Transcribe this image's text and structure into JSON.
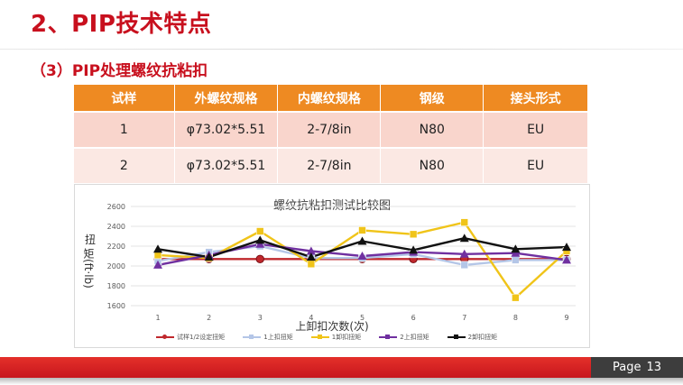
{
  "slide": {
    "title": "2、PIP技术特点",
    "subtitle": "（3）PIP处理螺纹抗粘扣",
    "page_label": "Page",
    "page_number": "13"
  },
  "table": {
    "headers": [
      "试样",
      "外螺纹规格",
      "内螺纹规格",
      "钢级",
      "接头形式"
    ],
    "rows": [
      [
        "1",
        "φ73.02*5.51",
        "2-7/8in",
        "N80",
        "EU"
      ],
      [
        "2",
        "φ73.02*5.51",
        "2-7/8in",
        "N80",
        "EU"
      ]
    ]
  },
  "chart_data": {
    "type": "line",
    "title": "螺纹抗粘扣测试比较图",
    "xlabel": "上卸扣次数(次)",
    "ylabel_main": "扭",
    "ylabel_rest": "矩(ft·lb)",
    "x": [
      1,
      2,
      3,
      4,
      5,
      6,
      7,
      8,
      9
    ],
    "ylim": [
      1600,
      2600
    ],
    "yticks": [
      1600,
      1800,
      2000,
      2200,
      2400,
      2600
    ],
    "grid": "horizontal",
    "legend_position": "bottom",
    "series": [
      {
        "name": "试样1/2设定扭矩",
        "color": "#c0282d",
        "marker": "circle",
        "values": [
          2070,
          2070,
          2070,
          2070,
          2070,
          2070,
          2070,
          2070,
          2070
        ]
      },
      {
        "name": "1上扣扭矩",
        "color": "#b4c6e7",
        "marker": "square",
        "values": [
          2050,
          2140,
          2200,
          2080,
          2080,
          2120,
          2010,
          2060,
          2060
        ]
      },
      {
        "name": "1卸扣扭矩",
        "color": "#f0c419",
        "marker": "square",
        "values": [
          2110,
          2080,
          2350,
          2020,
          2360,
          2320,
          2440,
          1680,
          2150
        ]
      },
      {
        "name": "2上扣扭矩",
        "color": "#7030a0",
        "marker": "triangle",
        "values": [
          2010,
          2110,
          2220,
          2150,
          2100,
          2140,
          2120,
          2130,
          2060
        ]
      },
      {
        "name": "2卸扣扭矩",
        "color": "#111111",
        "marker": "triangle",
        "values": [
          2170,
          2090,
          2260,
          2090,
          2250,
          2160,
          2280,
          2170,
          2190
        ]
      }
    ]
  }
}
